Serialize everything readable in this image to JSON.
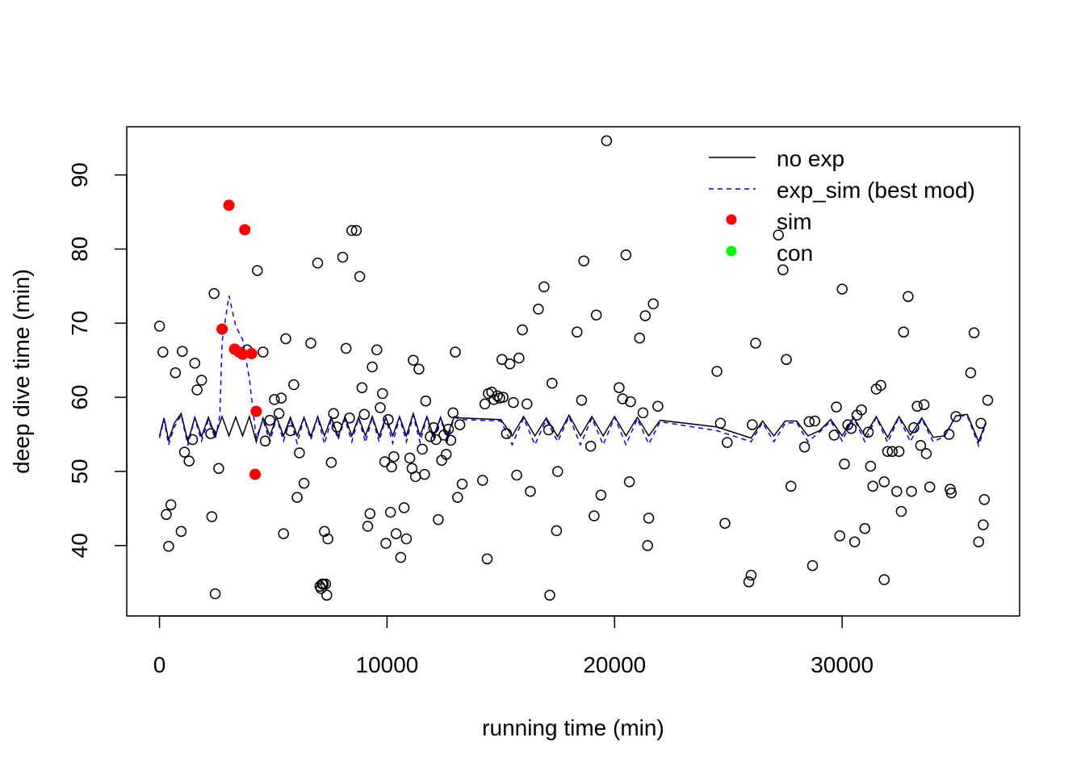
{
  "chart_data": {
    "type": "scatter",
    "title": "",
    "xlabel": "running time (min)",
    "ylabel": "deep dive time (min)",
    "xlim": [
      -1440,
      37800
    ],
    "ylim": [
      30.5,
      96.5
    ],
    "xticks": [
      0,
      10000,
      20000,
      30000
    ],
    "yticks": [
      40,
      50,
      60,
      70,
      80,
      90
    ],
    "legend_position": "top-right",
    "grid": false,
    "legend": [
      {
        "label": "no exp",
        "style": "solid-line",
        "color": "#000000"
      },
      {
        "label": "exp_sim  (best mod)",
        "style": "dashed-line",
        "color": "#0000ff"
      },
      {
        "label": "sim",
        "style": "filled-point",
        "color": "#ff0000"
      },
      {
        "label": "con",
        "style": "filled-point",
        "color": "#00ff00"
      }
    ],
    "points_all": [
      [
        0,
        69.6
      ],
      [
        150,
        66.1
      ],
      [
        300,
        44.2
      ],
      [
        400,
        39.9
      ],
      [
        500,
        45.5
      ],
      [
        700,
        63.3
      ],
      [
        950,
        41.9
      ],
      [
        1000,
        66.2
      ],
      [
        1100,
        52.6
      ],
      [
        1300,
        51.4
      ],
      [
        1450,
        54.3
      ],
      [
        1550,
        64.6
      ],
      [
        1650,
        61.0
      ],
      [
        1850,
        62.3
      ],
      [
        2250,
        55.1
      ],
      [
        2300,
        43.9
      ],
      [
        2400,
        74.0
      ],
      [
        2450,
        33.5
      ],
      [
        2600,
        50.4
      ],
      [
        7100,
        34.2
      ],
      [
        3850,
        66.4
      ],
      [
        4300,
        77.1
      ],
      [
        4550,
        66.1
      ],
      [
        4650,
        54.1
      ],
      [
        4850,
        56.9
      ],
      [
        5050,
        59.7
      ],
      [
        5250,
        57.8
      ],
      [
        5350,
        59.9
      ],
      [
        5450,
        41.6
      ],
      [
        5550,
        67.9
      ],
      [
        5750,
        55.5
      ],
      [
        5900,
        61.7
      ],
      [
        6050,
        46.5
      ],
      [
        6150,
        52.5
      ],
      [
        6350,
        48.4
      ],
      [
        6650,
        67.3
      ],
      [
        6950,
        78.1
      ],
      [
        7050,
        34.5
      ],
      [
        7150,
        34.8
      ],
      [
        7200,
        34.8
      ],
      [
        7250,
        41.9
      ],
      [
        7300,
        34.8
      ],
      [
        7350,
        33.3
      ],
      [
        7400,
        40.9
      ],
      [
        7550,
        51.2
      ],
      [
        7650,
        57.8
      ],
      [
        7800,
        56.0
      ],
      [
        8050,
        78.9
      ],
      [
        8200,
        66.6
      ],
      [
        8350,
        57.2
      ],
      [
        8450,
        82.5
      ],
      [
        8650,
        82.5
      ],
      [
        8800,
        76.3
      ],
      [
        8900,
        61.3
      ],
      [
        9000,
        57.7
      ],
      [
        9150,
        42.6
      ],
      [
        9250,
        44.3
      ],
      [
        9350,
        64.1
      ],
      [
        9550,
        66.4
      ],
      [
        9700,
        58.6
      ],
      [
        9800,
        60.5
      ],
      [
        9900,
        51.3
      ],
      [
        9950,
        40.3
      ],
      [
        10050,
        57.0
      ],
      [
        10150,
        44.5
      ],
      [
        10200,
        50.6
      ],
      [
        10300,
        52.0
      ],
      [
        10400,
        41.6
      ],
      [
        10600,
        38.4
      ],
      [
        10750,
        45.1
      ],
      [
        10850,
        40.9
      ],
      [
        11000,
        51.8
      ],
      [
        11100,
        50.4
      ],
      [
        11150,
        65.0
      ],
      [
        11250,
        49.3
      ],
      [
        11400,
        63.8
      ],
      [
        11550,
        53.0
      ],
      [
        11650,
        49.6
      ],
      [
        11700,
        59.5
      ],
      [
        11900,
        54.7
      ],
      [
        12050,
        55.9
      ],
      [
        12150,
        54.3
      ],
      [
        12250,
        43.5
      ],
      [
        12400,
        51.5
      ],
      [
        12500,
        54.9
      ],
      [
        12600,
        52.3
      ],
      [
        12700,
        55.7
      ],
      [
        12800,
        54.2
      ],
      [
        12900,
        57.9
      ],
      [
        13000,
        66.1
      ],
      [
        13100,
        46.5
      ],
      [
        13200,
        56.3
      ],
      [
        13300,
        48.3
      ],
      [
        14200,
        48.8
      ],
      [
        14300,
        59.1
      ],
      [
        14400,
        38.2
      ],
      [
        14450,
        60.5
      ],
      [
        14600,
        60.7
      ],
      [
        14700,
        59.7
      ],
      [
        14850,
        60.2
      ],
      [
        14950,
        59.9
      ],
      [
        15050,
        65.1
      ],
      [
        15100,
        60.0
      ],
      [
        15250,
        55.1
      ],
      [
        15400,
        64.5
      ],
      [
        15550,
        59.3
      ],
      [
        15700,
        49.5
      ],
      [
        15800,
        65.3
      ],
      [
        15950,
        69.1
      ],
      [
        16150,
        59.1
      ],
      [
        16300,
        47.3
      ],
      [
        16650,
        71.9
      ],
      [
        16900,
        74.9
      ],
      [
        17100,
        55.6
      ],
      [
        17150,
        33.3
      ],
      [
        17250,
        61.9
      ],
      [
        17450,
        42.0
      ],
      [
        17500,
        50.0
      ],
      [
        18350,
        68.8
      ],
      [
        18550,
        59.6
      ],
      [
        18650,
        78.4
      ],
      [
        18950,
        53.4
      ],
      [
        19100,
        44.0
      ],
      [
        19200,
        71.1
      ],
      [
        19400,
        46.8
      ],
      [
        19650,
        94.6
      ],
      [
        20200,
        61.3
      ],
      [
        20350,
        59.8
      ],
      [
        20500,
        79.2
      ],
      [
        20650,
        48.6
      ],
      [
        20700,
        59.4
      ],
      [
        21100,
        68.0
      ],
      [
        21250,
        57.9
      ],
      [
        21350,
        71.0
      ],
      [
        21450,
        40.0
      ],
      [
        21500,
        43.7
      ],
      [
        21700,
        72.6
      ],
      [
        21900,
        58.8
      ],
      [
        24500,
        63.5
      ],
      [
        24650,
        56.5
      ],
      [
        24850,
        43.0
      ],
      [
        24950,
        53.9
      ],
      [
        25900,
        35.1
      ],
      [
        26000,
        36.0
      ],
      [
        26050,
        56.3
      ],
      [
        26200,
        67.3
      ],
      [
        27200,
        81.9
      ],
      [
        27400,
        77.2
      ],
      [
        27550,
        65.1
      ],
      [
        27750,
        48.0
      ],
      [
        28350,
        53.3
      ],
      [
        28550,
        56.7
      ],
      [
        28700,
        37.3
      ],
      [
        28800,
        56.8
      ],
      [
        29650,
        54.9
      ],
      [
        29750,
        58.7
      ],
      [
        29900,
        41.3
      ],
      [
        30000,
        74.6
      ],
      [
        30100,
        51.0
      ],
      [
        30250,
        56.3
      ],
      [
        30400,
        55.8
      ],
      [
        30550,
        40.5
      ],
      [
        30650,
        57.6
      ],
      [
        30850,
        58.3
      ],
      [
        31000,
        42.3
      ],
      [
        31150,
        55.3
      ],
      [
        31250,
        50.7
      ],
      [
        31350,
        48.0
      ],
      [
        31500,
        61.1
      ],
      [
        31700,
        61.6
      ],
      [
        31850,
        35.4
      ],
      [
        31850,
        48.6
      ],
      [
        32000,
        52.7
      ],
      [
        32200,
        52.7
      ],
      [
        32400,
        47.3
      ],
      [
        32500,
        52.7
      ],
      [
        32600,
        44.6
      ],
      [
        32700,
        68.8
      ],
      [
        32900,
        73.6
      ],
      [
        33050,
        47.3
      ],
      [
        33150,
        55.9
      ],
      [
        33300,
        58.8
      ],
      [
        33450,
        53.5
      ],
      [
        33600,
        59.0
      ],
      [
        33700,
        52.4
      ],
      [
        33850,
        47.9
      ],
      [
        34700,
        55.0
      ],
      [
        34750,
        47.6
      ],
      [
        34800,
        47.1
      ],
      [
        35000,
        57.4
      ],
      [
        35650,
        63.3
      ],
      [
        35800,
        68.7
      ],
      [
        36000,
        40.5
      ],
      [
        36100,
        56.5
      ],
      [
        36200,
        42.8
      ],
      [
        36250,
        46.2
      ],
      [
        36400,
        59.6
      ]
    ],
    "points_sim": [
      [
        3050,
        85.9
      ],
      [
        3750,
        82.6
      ],
      [
        2750,
        69.2
      ],
      [
        3300,
        66.5
      ],
      [
        3500,
        66.1
      ],
      [
        3650,
        65.8
      ],
      [
        4050,
        65.9
      ],
      [
        4250,
        58.1
      ],
      [
        4200,
        49.6
      ]
    ],
    "points_con": [],
    "series": [
      {
        "name": "no exp",
        "x": [
          0,
          200,
          400,
          650,
          950,
          1250,
          1550,
          1850,
          2150,
          2450,
          2750,
          3050,
          3350,
          3650,
          3950,
          4250,
          4550,
          4850,
          5150,
          5450,
          5750,
          6050,
          6350,
          6650,
          6950,
          7250,
          7550,
          7850,
          8150,
          8450,
          8750,
          9050,
          9350,
          9650,
          9950,
          10250,
          10550,
          10850,
          11150,
          11450,
          11750,
          12050,
          12350,
          12650,
          12950,
          13250,
          15000,
          15500,
          16000,
          16500,
          17000,
          17500,
          18000,
          18500,
          19000,
          19500,
          20000,
          20500,
          21000,
          21500,
          22000,
          24500,
          25000,
          26000,
          26500,
          27000,
          27500,
          28000,
          28500,
          29000,
          29500,
          30000,
          30500,
          31000,
          31500,
          32000,
          32500,
          33000,
          33500,
          34000,
          34500,
          35000,
          35500,
          36000,
          36300
        ],
        "y": [
          54.8,
          57.2,
          54.2,
          56.5,
          57.8,
          54.0,
          57.3,
          54.7,
          57.3,
          54.8,
          57.4,
          54.8,
          57.3,
          54.8,
          57.4,
          54.0,
          57.2,
          54.8,
          57.3,
          54.8,
          57.3,
          54.8,
          57.3,
          54.7,
          57.4,
          54.8,
          57.3,
          54.7,
          57.4,
          54.8,
          57.3,
          54.8,
          57.4,
          54.7,
          57.3,
          54.8,
          57.4,
          54.8,
          57.8,
          54.8,
          57.4,
          54.7,
          57.3,
          54.8,
          57.4,
          57.2,
          57.0,
          54.8,
          57.4,
          54.8,
          57.2,
          54.7,
          57.6,
          54.8,
          57.4,
          54.8,
          57.4,
          54.8,
          57.3,
          54.8,
          56.9,
          56.0,
          55.5,
          54.5,
          56.8,
          54.8,
          56.8,
          56.8,
          54.8,
          55.5,
          57.0,
          54.8,
          57.3,
          54.8,
          57.4,
          54.6,
          57.4,
          54.9,
          57.2,
          54.6,
          54.8,
          57.5,
          57.7,
          54.0,
          56.5
        ]
      },
      {
        "name": "exp_sim  (best mod)",
        "x": [
          0,
          200,
          400,
          650,
          950,
          1250,
          1550,
          1850,
          2150,
          2450,
          2650,
          2750,
          3050,
          3350,
          3650,
          3950,
          4250,
          4550,
          4850,
          5150,
          5450,
          5750,
          6050,
          6350,
          6650,
          6950,
          7250,
          7550,
          7850,
          8150,
          8450,
          8750,
          9050,
          9350,
          9650,
          9950,
          10250,
          10550,
          10850,
          11150,
          11450,
          11750,
          12050,
          12350,
          12650,
          12950,
          13250,
          15000,
          15500,
          16000,
          16500,
          17000,
          17500,
          18000,
          18500,
          19000,
          19500,
          20000,
          20500,
          21000,
          21500,
          22000,
          24500,
          25000,
          26000,
          26500,
          27000,
          27500,
          28000,
          28500,
          29000,
          29500,
          30000,
          30500,
          31000,
          31500,
          32000,
          32500,
          33000,
          33500,
          34000,
          34500,
          35000,
          35500,
          36000,
          36300
        ],
        "y": [
          54.5,
          57.0,
          53.6,
          56.0,
          57.6,
          53.5,
          57.2,
          54.1,
          57.0,
          54.4,
          57.5,
          67.5,
          73.7,
          69.6,
          67.8,
          62.5,
          54.5,
          57.0,
          54.0,
          57.3,
          54.1,
          57.1,
          53.8,
          57.2,
          54.3,
          57.3,
          53.7,
          57.0,
          54.3,
          57.1,
          54.0,
          57.2,
          53.9,
          57.3,
          54.0,
          57.2,
          53.8,
          57.3,
          54.0,
          57.6,
          53.9,
          57.3,
          54.3,
          57.2,
          54.1,
          57.3,
          57.0,
          56.8,
          53.6,
          57.2,
          53.6,
          57.0,
          54.0,
          57.4,
          53.6,
          57.2,
          53.6,
          57.3,
          53.6,
          57.1,
          53.7,
          56.7,
          55.5,
          55.0,
          54.0,
          56.6,
          54.0,
          56.5,
          56.6,
          54.0,
          55.3,
          56.8,
          54.1,
          57.3,
          54.0,
          57.3,
          53.9,
          57.3,
          54.0,
          57.1,
          54.0,
          54.7,
          57.5,
          57.5,
          53.5,
          56.3
        ]
      }
    ]
  }
}
